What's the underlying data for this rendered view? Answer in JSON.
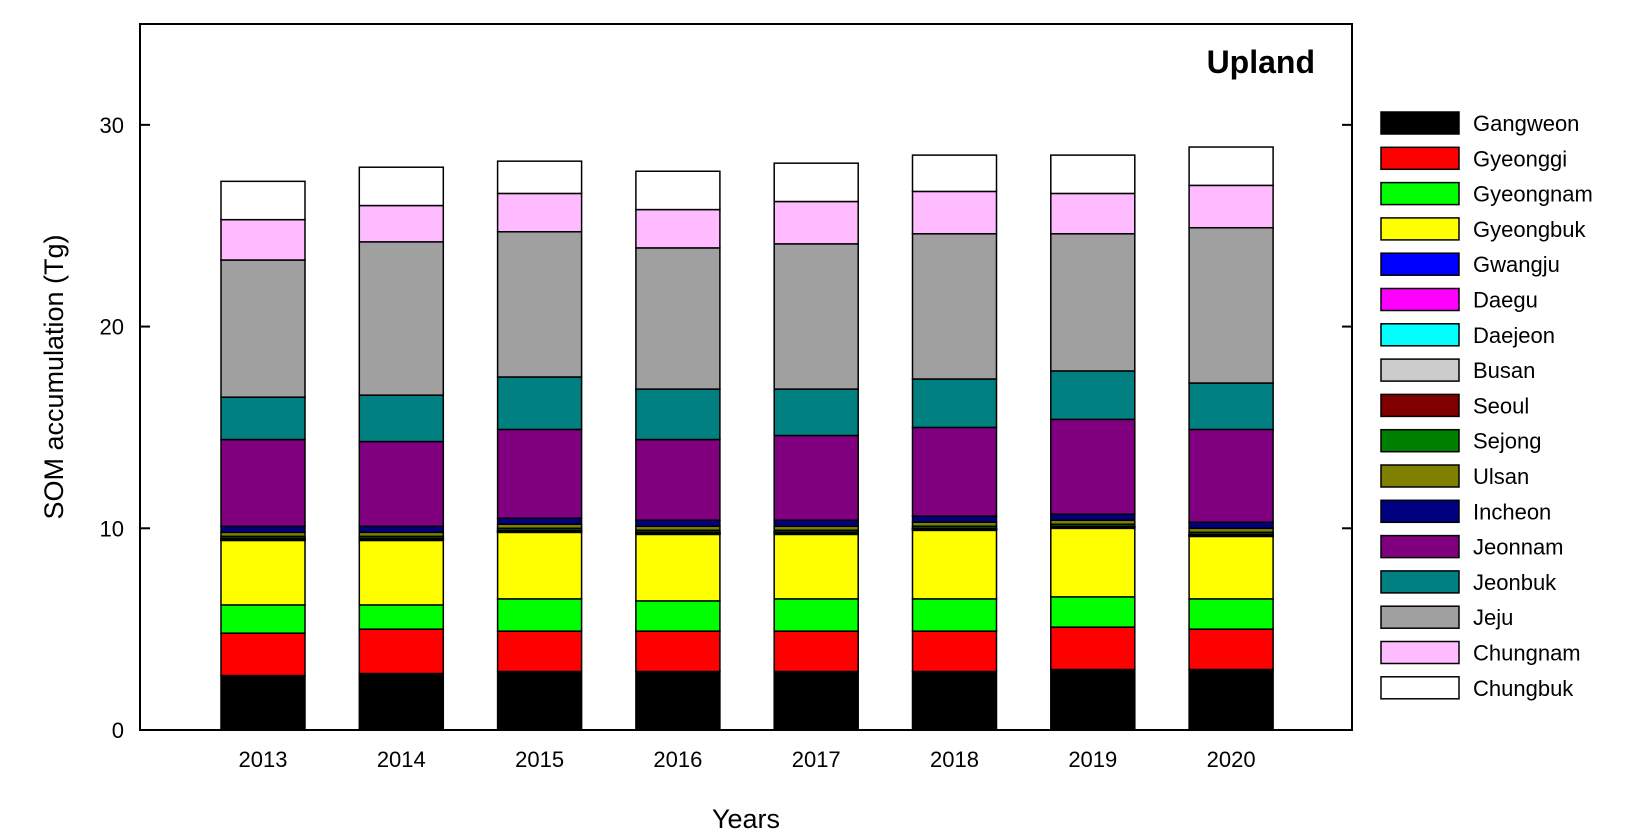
{
  "chart_data": {
    "type": "bar",
    "stacked": true,
    "title": "Upland",
    "xlabel": "Years",
    "ylabel": "SOM accumulation (Tg)",
    "ylim": [
      0,
      35
    ],
    "yticks": [
      0,
      10,
      20,
      30
    ],
    "grid": false,
    "legend_position": "right",
    "categories": [
      "2013",
      "2014",
      "2015",
      "2016",
      "2017",
      "2018",
      "2019",
      "2020"
    ],
    "series": [
      {
        "name": "Gangweon",
        "color": "#000000",
        "values": [
          2.7,
          2.8,
          2.9,
          2.9,
          2.9,
          2.9,
          3.0,
          3.0
        ]
      },
      {
        "name": "Gyeonggi",
        "color": "#ff0000",
        "values": [
          2.1,
          2.2,
          2.0,
          2.0,
          2.0,
          2.0,
          2.1,
          2.0
        ]
      },
      {
        "name": "Gyeongnam",
        "color": "#00ff00",
        "values": [
          1.4,
          1.2,
          1.6,
          1.5,
          1.6,
          1.6,
          1.5,
          1.5
        ]
      },
      {
        "name": "Gyeongbuk",
        "color": "#ffff00",
        "values": [
          3.2,
          3.2,
          3.3,
          3.3,
          3.2,
          3.4,
          3.4,
          3.1
        ]
      },
      {
        "name": "Gwangju",
        "color": "#0000ff",
        "values": [
          0.02,
          0.02,
          0.02,
          0.02,
          0.02,
          0.02,
          0.02,
          0.02
        ]
      },
      {
        "name": "Daegu",
        "color": "#ff00ff",
        "values": [
          0.03,
          0.03,
          0.03,
          0.03,
          0.03,
          0.03,
          0.03,
          0.03
        ]
      },
      {
        "name": "Daejeon",
        "color": "#00ffff",
        "values": [
          0.02,
          0.02,
          0.02,
          0.02,
          0.02,
          0.02,
          0.02,
          0.02
        ]
      },
      {
        "name": "Busan",
        "color": "#cccccc",
        "values": [
          0.02,
          0.02,
          0.02,
          0.02,
          0.02,
          0.02,
          0.02,
          0.02
        ]
      },
      {
        "name": "Seoul",
        "color": "#800000",
        "values": [
          0.01,
          0.01,
          0.01,
          0.01,
          0.01,
          0.01,
          0.01,
          0.01
        ]
      },
      {
        "name": "Sejong",
        "color": "#008000",
        "values": [
          0.1,
          0.1,
          0.1,
          0.1,
          0.1,
          0.1,
          0.1,
          0.1
        ]
      },
      {
        "name": "Ulsan",
        "color": "#808000",
        "values": [
          0.2,
          0.2,
          0.2,
          0.2,
          0.2,
          0.2,
          0.2,
          0.2
        ]
      },
      {
        "name": "Incheon",
        "color": "#000080",
        "values": [
          0.3,
          0.3,
          0.3,
          0.3,
          0.3,
          0.3,
          0.3,
          0.3
        ]
      },
      {
        "name": "Jeonnam",
        "color": "#800080",
        "values": [
          4.3,
          4.2,
          4.4,
          4.0,
          4.2,
          4.4,
          4.7,
          4.6
        ]
      },
      {
        "name": "Jeonbuk",
        "color": "#008080",
        "values": [
          2.1,
          2.3,
          2.6,
          2.5,
          2.3,
          2.4,
          2.4,
          2.3
        ]
      },
      {
        "name": "Jeju",
        "color": "#a0a0a0",
        "values": [
          6.8,
          7.6,
          7.2,
          7.0,
          7.2,
          7.2,
          6.8,
          7.7
        ]
      },
      {
        "name": "Chungnam",
        "color": "#ffbbff",
        "values": [
          2.0,
          1.8,
          1.9,
          1.9,
          2.1,
          2.1,
          2.0,
          2.1
        ]
      },
      {
        "name": "Chungbuk",
        "color": "#ffffff",
        "values": [
          1.9,
          1.9,
          1.6,
          1.9,
          1.9,
          1.8,
          1.9,
          1.9
        ]
      }
    ]
  }
}
